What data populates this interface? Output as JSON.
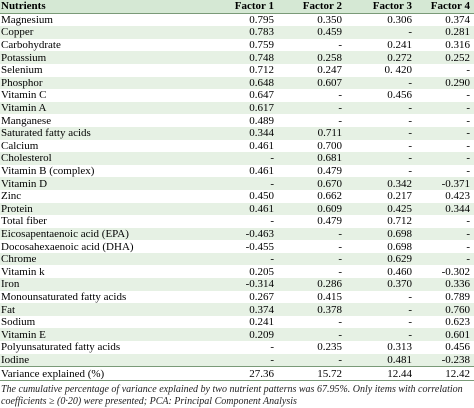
{
  "table": {
    "header": [
      "Nutrients",
      "Factor 1",
      "Factor 2",
      "Factor 3",
      "Factor 4"
    ],
    "rows": [
      [
        "Magnesium",
        "0.795",
        "0.350",
        "0.306",
        "0.374"
      ],
      [
        "Copper",
        "0.783",
        "0.459",
        "-",
        "0.281"
      ],
      [
        "Carbohydrate",
        "0.759",
        "-",
        "0.241",
        "0.316"
      ],
      [
        "Potassium",
        "0.748",
        "0.258",
        "0.272",
        "0.252"
      ],
      [
        "Selenium",
        "0.712",
        "0.247",
        "0. 420",
        "-"
      ],
      [
        "Phosphor",
        "0.648",
        "0.607",
        "-",
        "0.290"
      ],
      [
        "Vitamin C",
        "0.647",
        "-",
        "0.456",
        "-"
      ],
      [
        "Vitamin A",
        "0.617",
        "-",
        "-",
        "-"
      ],
      [
        "Manganese",
        "0.489",
        "-",
        "-",
        "-"
      ],
      [
        "Saturated fatty acids",
        "0.344",
        "0.711",
        "-",
        "-"
      ],
      [
        "Calcium",
        "0.461",
        "0.700",
        "-",
        "-"
      ],
      [
        "Cholesterol",
        "-",
        "0.681",
        "-",
        "-"
      ],
      [
        "Vitamin B (complex)",
        "0.461",
        "0.479",
        "-",
        "-"
      ],
      [
        "Vitamin D",
        "-",
        "0.670",
        "0.342",
        "-0.371"
      ],
      [
        "Zinc",
        "0.450",
        "0.662",
        "0.217",
        "0.423"
      ],
      [
        "Protein",
        "0.461",
        "0.609",
        "0.425",
        "0.344"
      ],
      [
        "Total fiber",
        "-",
        "0.479",
        "0.712",
        "-"
      ],
      [
        "Eicosapentaenoic acid (EPA)",
        "-0.463",
        "-",
        "0.698",
        "-"
      ],
      [
        "Docosahexaenoic acid (DHA)",
        "-0.455",
        "-",
        "0.698",
        "-"
      ],
      [
        "Chrome",
        "-",
        "-",
        "0.629",
        "-"
      ],
      [
        "Vitamin k",
        "0.205",
        "-",
        "0.460",
        "-0.302"
      ],
      [
        "Iron",
        "-0.314",
        "0.286",
        "0.370",
        "0.336"
      ],
      [
        "Monounsaturated fatty acids",
        "0.267",
        "0.415",
        "-",
        "0.789"
      ],
      [
        "Fat",
        "0.374",
        "0.378",
        "-",
        "0.760"
      ],
      [
        "Sodium",
        "0.241",
        "-",
        "-",
        "0.623"
      ],
      [
        "Vitamin E",
        "0.209",
        "-",
        "-",
        "0.601"
      ],
      [
        "Polyunsaturated fatty acids",
        "-",
        "0.235",
        "0.313",
        "0.456"
      ],
      [
        "Iodine",
        "-",
        "-",
        "0.481",
        "-0.238"
      ],
      [
        "Variance explained (%)",
        "27.36",
        "15.72",
        "12.44",
        "12.42"
      ]
    ]
  },
  "footnote": "The cumulative percentage of variance explained by two nutrient patterns was 67.95%. Only items with correlation coefficients ≥ (0·20) were presented; PCA: Principal Component Analysis"
}
